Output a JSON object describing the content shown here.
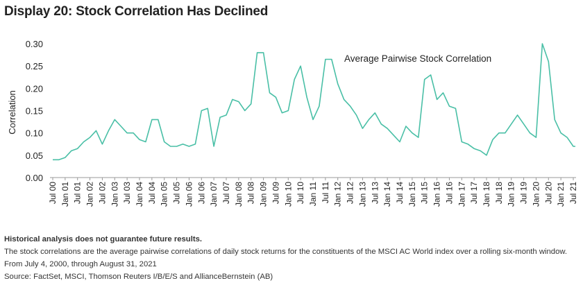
{
  "title": "Display 20: Stock Correlation Has Declined",
  "notes": {
    "disclaimer": "Historical analysis does not guarantee future results.",
    "description": "The stock correlations are the average pairwise correlations of daily stock returns for the constituents of the MSCI AC World index over a rolling six-month window.",
    "period": "From July 4, 2000, through August 31, 2021",
    "source": "Source: FactSet, MSCI, Thomson Reuters I/B/E/S and AllianceBernstein (AB)"
  },
  "colors": {
    "line": "#49bfa6",
    "axis": "#999999",
    "text": "#222222"
  },
  "chart_data": {
    "type": "line",
    "title": "",
    "xlabel": "",
    "ylabel": "Correlation",
    "ylim": [
      0,
      0.3
    ],
    "yticks": [
      "0.00",
      "0.05",
      "0.10",
      "0.15",
      "0.20",
      "0.25",
      "0.30"
    ],
    "grid": false,
    "annotation": "Average Pairwise Stock Correlation",
    "xticks": [
      "Jul 00",
      "Jan 01",
      "Jul 01",
      "Jan 02",
      "Jul 02",
      "Jan 03",
      "Jul 03",
      "Jan 04",
      "Jul 04",
      "Jan 05",
      "Jul 05",
      "Jan 06",
      "Jul 06",
      "Jan 07",
      "Jul 07",
      "Jan 08",
      "Jul 08",
      "Jan 09",
      "Jul 09",
      "Jan 10",
      "Jul 10",
      "Jan 11",
      "Jul 11",
      "Jan 12",
      "Jul 12",
      "Jan 13",
      "Jul 13",
      "Jan 14",
      "Jul 14",
      "Jan 15",
      "Jul 15",
      "Jan 16",
      "Jul 16",
      "Jan 17",
      "Jul 17",
      "Jan 18",
      "Jul 18",
      "Jan 19",
      "Jul 19",
      "Jan 20",
      "Jul 20",
      "Jan 21",
      "Jul 21"
    ],
    "series": [
      {
        "x": [
          "2000-07",
          "2000-10",
          "2001-01",
          "2001-04",
          "2001-07",
          "2001-10",
          "2002-01",
          "2002-04",
          "2002-07",
          "2002-10",
          "2003-01",
          "2003-04",
          "2003-07",
          "2003-10",
          "2004-01",
          "2004-04",
          "2004-07",
          "2004-10",
          "2005-01",
          "2005-04",
          "2005-07",
          "2005-10",
          "2006-01",
          "2006-04",
          "2006-07",
          "2006-10",
          "2007-01",
          "2007-04",
          "2007-07",
          "2007-10",
          "2008-01",
          "2008-04",
          "2008-07",
          "2008-10",
          "2009-01",
          "2009-04",
          "2009-07",
          "2009-10",
          "2010-01",
          "2010-04",
          "2010-07",
          "2010-10",
          "2011-01",
          "2011-04",
          "2011-07",
          "2011-10",
          "2012-01",
          "2012-04",
          "2012-07",
          "2012-10",
          "2013-01",
          "2013-04",
          "2013-07",
          "2013-10",
          "2014-01",
          "2014-04",
          "2014-07",
          "2014-10",
          "2015-01",
          "2015-04",
          "2015-07",
          "2015-10",
          "2016-01",
          "2016-04",
          "2016-07",
          "2016-10",
          "2017-01",
          "2017-04",
          "2017-07",
          "2017-10",
          "2018-01",
          "2018-04",
          "2018-07",
          "2018-10",
          "2019-01",
          "2019-04",
          "2019-07",
          "2019-10",
          "2020-01",
          "2020-04",
          "2020-07",
          "2020-10",
          "2021-01",
          "2021-04",
          "2021-07",
          "2021-08"
        ],
        "values": [
          0.04,
          0.04,
          0.045,
          0.06,
          0.065,
          0.08,
          0.09,
          0.105,
          0.075,
          0.105,
          0.13,
          0.115,
          0.1,
          0.1,
          0.085,
          0.08,
          0.13,
          0.13,
          0.08,
          0.07,
          0.07,
          0.075,
          0.07,
          0.075,
          0.15,
          0.155,
          0.07,
          0.135,
          0.14,
          0.175,
          0.17,
          0.15,
          0.165,
          0.28,
          0.28,
          0.19,
          0.18,
          0.145,
          0.15,
          0.22,
          0.25,
          0.18,
          0.13,
          0.16,
          0.265,
          0.265,
          0.21,
          0.175,
          0.16,
          0.14,
          0.11,
          0.13,
          0.145,
          0.12,
          0.11,
          0.095,
          0.08,
          0.115,
          0.1,
          0.09,
          0.22,
          0.23,
          0.175,
          0.19,
          0.16,
          0.155,
          0.08,
          0.075,
          0.065,
          0.06,
          0.05,
          0.085,
          0.1,
          0.1,
          0.12,
          0.14,
          0.12,
          0.1,
          0.09,
          0.3,
          0.26,
          0.13,
          0.1,
          0.09,
          0.07,
          0.07
        ]
      }
    ]
  }
}
